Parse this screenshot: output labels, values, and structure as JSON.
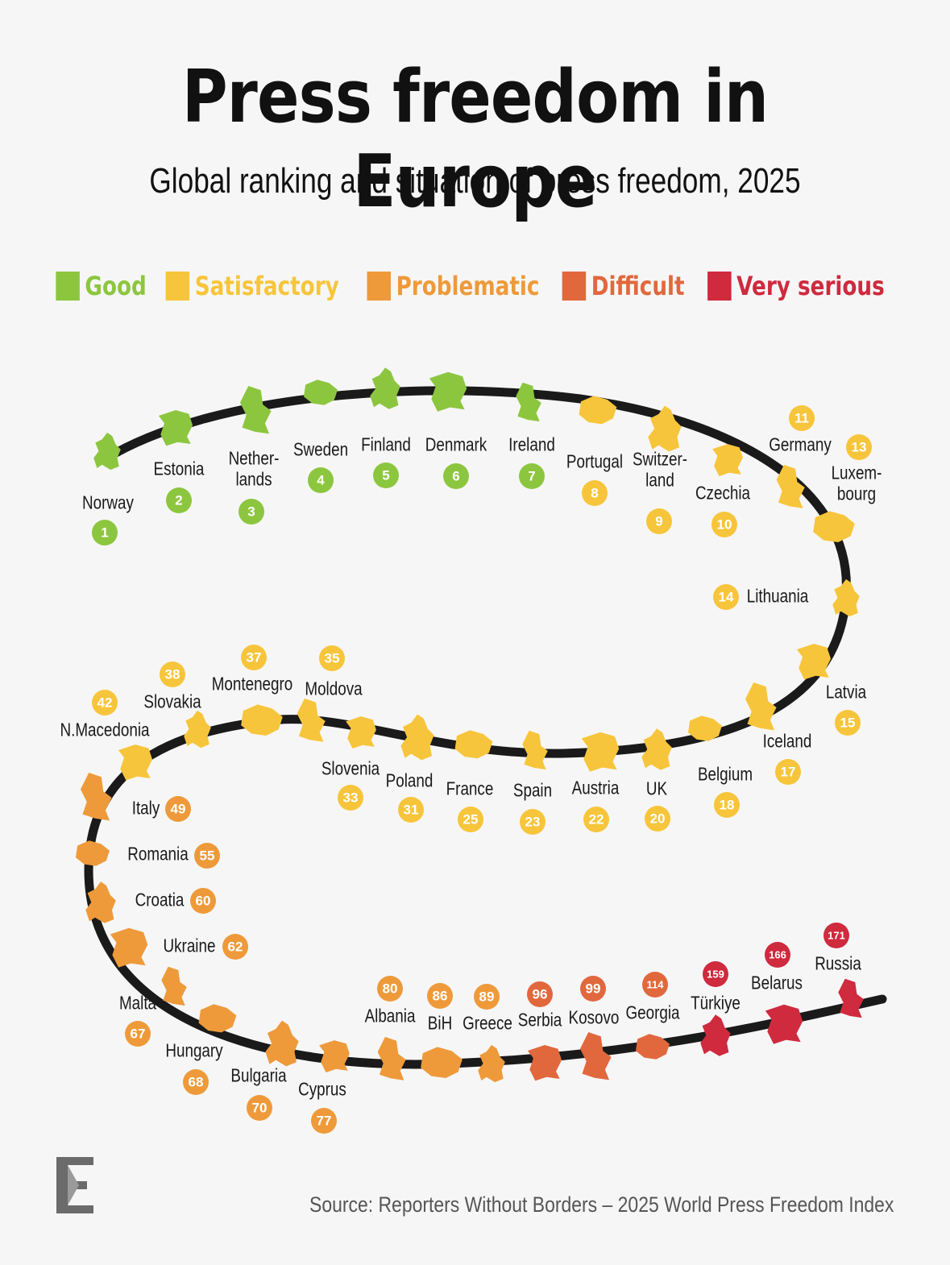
{
  "title": "Press freedom in Europe",
  "subtitle": "Global ranking and situation of press freedom, 2025",
  "source": "Source: Reporters Without Borders – 2025 World Press Freedom Index",
  "logo_icon": "letter-e-logo-icon",
  "legend": [
    {
      "key": "good",
      "label": "Good",
      "color": "#8cc63f"
    },
    {
      "key": "satisfactory",
      "label": "Satisfactory",
      "color": "#f7c53b"
    },
    {
      "key": "problematic",
      "label": "Problematic",
      "color": "#ee9a3a"
    },
    {
      "key": "difficult",
      "label": "Difficult",
      "color": "#e1683d"
    },
    {
      "key": "very_serious",
      "label": "Very serious",
      "color": "#cf2a3e"
    }
  ],
  "chart_data": {
    "type": "table",
    "columns": [
      "country",
      "rank",
      "situation"
    ],
    "rows": [
      {
        "country": "Norway",
        "rank": 1,
        "situation": "good"
      },
      {
        "country": "Estonia",
        "rank": 2,
        "situation": "good"
      },
      {
        "country": "Nether-\nlands",
        "rank": 3,
        "situation": "good"
      },
      {
        "country": "Sweden",
        "rank": 4,
        "situation": "good"
      },
      {
        "country": "Finland",
        "rank": 5,
        "situation": "good"
      },
      {
        "country": "Denmark",
        "rank": 6,
        "situation": "good"
      },
      {
        "country": "Ireland",
        "rank": 7,
        "situation": "good"
      },
      {
        "country": "Portugal",
        "rank": 8,
        "situation": "satisfactory"
      },
      {
        "country": "Switzer-\nland",
        "rank": 9,
        "situation": "satisfactory"
      },
      {
        "country": "Czechia",
        "rank": 10,
        "situation": "satisfactory"
      },
      {
        "country": "Germany",
        "rank": 11,
        "situation": "satisfactory"
      },
      {
        "country": "Luxem-\nbourg",
        "rank": 13,
        "situation": "satisfactory"
      },
      {
        "country": "Lithuania",
        "rank": 14,
        "situation": "satisfactory"
      },
      {
        "country": "Latvia",
        "rank": 15,
        "situation": "satisfactory"
      },
      {
        "country": "Iceland",
        "rank": 17,
        "situation": "satisfactory"
      },
      {
        "country": "Belgium",
        "rank": 18,
        "situation": "satisfactory"
      },
      {
        "country": "UK",
        "rank": 20,
        "situation": "satisfactory"
      },
      {
        "country": "Austria",
        "rank": 22,
        "situation": "satisfactory"
      },
      {
        "country": "Spain",
        "rank": 23,
        "situation": "satisfactory"
      },
      {
        "country": "France",
        "rank": 25,
        "situation": "satisfactory"
      },
      {
        "country": "Poland",
        "rank": 31,
        "situation": "satisfactory"
      },
      {
        "country": "Slovenia",
        "rank": 33,
        "situation": "satisfactory"
      },
      {
        "country": "Moldova",
        "rank": 35,
        "situation": "satisfactory"
      },
      {
        "country": "Montenegro",
        "rank": 37,
        "situation": "satisfactory"
      },
      {
        "country": "Slovakia",
        "rank": 38,
        "situation": "satisfactory"
      },
      {
        "country": "N.Macedonia",
        "rank": 42,
        "situation": "satisfactory"
      },
      {
        "country": "Italy",
        "rank": 49,
        "situation": "problematic"
      },
      {
        "country": "Romania",
        "rank": 55,
        "situation": "problematic"
      },
      {
        "country": "Croatia",
        "rank": 60,
        "situation": "problematic"
      },
      {
        "country": "Ukraine",
        "rank": 62,
        "situation": "problematic"
      },
      {
        "country": "Malta",
        "rank": 67,
        "situation": "problematic"
      },
      {
        "country": "Hungary",
        "rank": 68,
        "situation": "problematic"
      },
      {
        "country": "Bulgaria",
        "rank": 70,
        "situation": "problematic"
      },
      {
        "country": "Cyprus",
        "rank": 77,
        "situation": "problematic"
      },
      {
        "country": "Albania",
        "rank": 80,
        "situation": "problematic"
      },
      {
        "country": "BiH",
        "rank": 86,
        "situation": "problematic"
      },
      {
        "country": "Greece",
        "rank": 89,
        "situation": "problematic"
      },
      {
        "country": "Serbia",
        "rank": 96,
        "situation": "difficult"
      },
      {
        "country": "Kosovo",
        "rank": 99,
        "situation": "difficult"
      },
      {
        "country": "Georgia",
        "rank": 114,
        "situation": "difficult"
      },
      {
        "country": "Türkiye",
        "rank": 159,
        "situation": "very_serious"
      },
      {
        "country": "Belarus",
        "rank": 166,
        "situation": "very_serious"
      },
      {
        "country": "Russia",
        "rank": 171,
        "situation": "very_serious"
      }
    ]
  }
}
